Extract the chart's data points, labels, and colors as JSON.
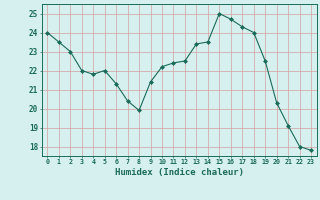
{
  "x": [
    0,
    1,
    2,
    3,
    4,
    5,
    6,
    7,
    8,
    9,
    10,
    11,
    12,
    13,
    14,
    15,
    16,
    17,
    18,
    19,
    20,
    21,
    22,
    23
  ],
  "y": [
    24.0,
    23.5,
    23.0,
    22.0,
    21.8,
    22.0,
    21.3,
    20.4,
    19.9,
    21.4,
    22.2,
    22.4,
    22.5,
    23.4,
    23.5,
    25.0,
    24.7,
    24.3,
    24.0,
    22.5,
    20.3,
    19.1,
    18.0,
    17.8
  ],
  "line_color": "#1a6b5a",
  "marker": "D",
  "marker_size": 2.0,
  "bg_color": "#d6f0ef",
  "grid_color": "#c8dede",
  "xlabel": "Humidex (Indice chaleur)",
  "xlabel_color": "#1a6b5a",
  "tick_color": "#1a6b5a",
  "ylim": [
    17.5,
    25.5
  ],
  "yticks": [
    18,
    19,
    20,
    21,
    22,
    23,
    24,
    25
  ],
  "xlim": [
    -0.5,
    23.5
  ],
  "xticks": [
    0,
    1,
    2,
    3,
    4,
    5,
    6,
    7,
    8,
    9,
    10,
    11,
    12,
    13,
    14,
    15,
    16,
    17,
    18,
    19,
    20,
    21,
    22,
    23
  ]
}
